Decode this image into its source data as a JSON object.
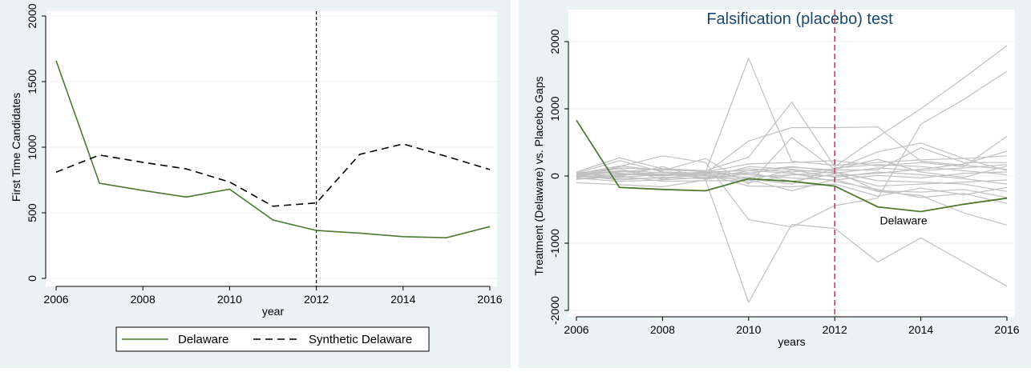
{
  "colors": {
    "outer_bg": "#eaf2f3",
    "plot_bg": "#ffffff",
    "grid": "#eaf2f3",
    "axis": "#000000",
    "treated": "#4a7a2e",
    "synthetic": "#000000",
    "placebo": "#c0c0c0",
    "treatment_line_right": "#e8305a",
    "title": "#1a476f"
  },
  "chart_data": [
    {
      "type": "line",
      "title": "",
      "xlabel": "year",
      "ylabel": "First Time Candidates",
      "xlim": [
        2006,
        2016
      ],
      "ylim": [
        0,
        2000
      ],
      "xticks": [
        "2006",
        "2008",
        "2010",
        "2012",
        "2014",
        "2016"
      ],
      "yticks": [
        "0",
        "500",
        "1000",
        "1500",
        "2000"
      ],
      "grid": true,
      "treatment_year": 2012,
      "x": [
        2006,
        2007,
        2008,
        2009,
        2010,
        2011,
        2012,
        2013,
        2014,
        2015,
        2016
      ],
      "series": [
        {
          "name": "Delaware",
          "style": "solid",
          "values": [
            1660,
            725,
            670,
            620,
            680,
            445,
            365,
            345,
            318,
            310,
            395
          ]
        },
        {
          "name": "Synthetic Delaware",
          "style": "dashed",
          "values": [
            810,
            940,
            885,
            835,
            735,
            550,
            575,
            945,
            1025,
            930,
            830
          ]
        }
      ],
      "legend_placement": "bottom"
    },
    {
      "type": "line",
      "title": "Falsification (placebo) test",
      "xlabel": "years",
      "ylabel": "Treatment (Delaware) vs. Placebo Gaps",
      "xlim": [
        2006,
        2016
      ],
      "ylim": [
        -2000,
        2000
      ],
      "xticks": [
        "2006",
        "2008",
        "2010",
        "2012",
        "2014",
        "2016"
      ],
      "yticks": [
        "-2000",
        "-1000",
        "0",
        "1000",
        "2000"
      ],
      "grid": true,
      "treatment_year": 2012,
      "annotation": "Delaware",
      "x": [
        2006,
        2007,
        2008,
        2009,
        2010,
        2011,
        2012,
        2013,
        2014,
        2015,
        2016
      ],
      "treated": {
        "name": "Delaware",
        "values": [
          830,
          -170,
          -200,
          -220,
          -40,
          -80,
          -150,
          -460,
          -530,
          -420,
          -330
        ]
      },
      "placebos": [
        [
          -100,
          -130,
          -160,
          -60,
          -1880,
          -720,
          -780,
          -1280,
          -920,
          -1280,
          -1640
        ],
        [
          20,
          110,
          -50,
          60,
          1750,
          220,
          160,
          200,
          240,
          260,
          300
        ],
        [
          40,
          230,
          60,
          40,
          520,
          720,
          720,
          730,
          220,
          160,
          100
        ],
        [
          10,
          60,
          110,
          80,
          280,
          1100,
          140,
          580,
          1000,
          1460,
          1940
        ],
        [
          -20,
          140,
          300,
          200,
          -650,
          -760,
          -440,
          -330,
          770,
          1140,
          1560
        ],
        [
          30,
          150,
          80,
          260,
          -120,
          570,
          100,
          360,
          490,
          260,
          80
        ],
        [
          -50,
          -10,
          140,
          -50,
          40,
          130,
          90,
          90,
          420,
          200,
          200
        ],
        [
          60,
          270,
          110,
          60,
          180,
          200,
          230,
          150,
          200,
          140,
          590
        ],
        [
          -30,
          -80,
          -60,
          -20,
          -50,
          -220,
          -50,
          -230,
          -290,
          -550,
          -730
        ],
        [
          10,
          -20,
          20,
          60,
          80,
          40,
          -80,
          -200,
          -320,
          -260,
          -410
        ],
        [
          50,
          40,
          10,
          40,
          -100,
          20,
          0,
          40,
          100,
          180,
          370
        ],
        [
          -10,
          20,
          30,
          -30,
          140,
          100,
          40,
          120,
          80,
          120,
          170
        ],
        [
          0,
          -40,
          -30,
          20,
          -150,
          -160,
          -120,
          -300,
          -180,
          -280,
          -170
        ],
        [
          20,
          80,
          50,
          10,
          50,
          -80,
          30,
          -150,
          -120,
          -90,
          -60
        ],
        [
          -40,
          0,
          -80,
          -70,
          -70,
          90,
          -20,
          60,
          20,
          -40,
          -120
        ],
        [
          30,
          10,
          60,
          30,
          110,
          60,
          100,
          250,
          60,
          -20,
          150
        ],
        [
          0,
          70,
          20,
          0,
          -20,
          20,
          60,
          -70,
          -90,
          -120,
          -230
        ],
        [
          -20,
          30,
          0,
          50,
          20,
          -30,
          -60,
          10,
          -30,
          40,
          60
        ],
        [
          10,
          -60,
          -20,
          -40,
          80,
          140,
          70,
          -220,
          -240,
          -200,
          -320
        ],
        [
          40,
          120,
          90,
          70,
          -40,
          -120,
          120,
          170,
          140,
          80,
          20
        ]
      ]
    }
  ],
  "legend": {
    "items": [
      "Delaware",
      "Synthetic Delaware"
    ]
  }
}
